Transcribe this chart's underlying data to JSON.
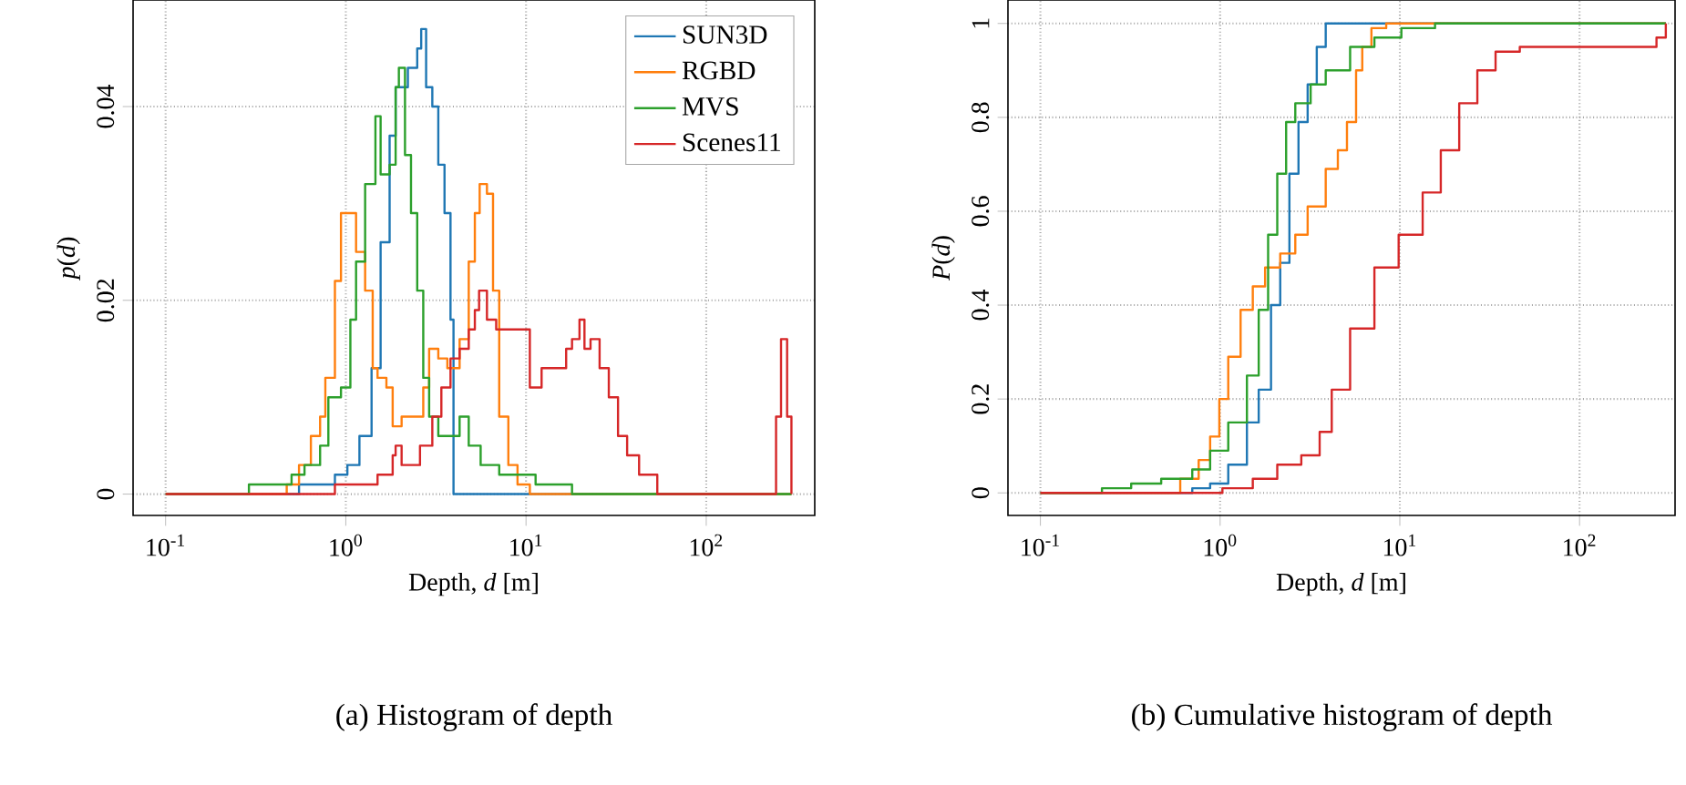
{
  "chart_data": [
    {
      "type": "step",
      "title": "(a) Histogram of depth",
      "xlabel": "Depth, *d* [m]",
      "ylabel": "*p*(*d*)",
      "log": "x",
      "grid": true,
      "legend": "top right",
      "xlim": [
        0.066,
        400
      ],
      "ylim": [
        -0.0022,
        0.051
      ],
      "xticks": [
        {
          "value": 0.1,
          "label": "10$^{-1}$"
        },
        {
          "value": 1,
          "label": "10$^{0}$"
        },
        {
          "value": 10,
          "label": "10$^{1}$"
        },
        {
          "value": 100,
          "label": "10$^{2}$"
        }
      ],
      "yticks": [
        0,
        0.02,
        0.04
      ],
      "series": [
        {
          "name": "SUN3D",
          "color": "#1f77b4",
          "x": [
            0.1,
            0.5,
            0.55,
            0.69,
            0.87,
            1.02,
            1.19,
            1.39,
            1.56,
            1.75,
            1.89,
            2.21,
            2.49,
            2.62,
            2.79,
            3.02,
            3.26,
            3.53,
            3.81,
            3.96,
            297
          ],
          "values": [
            0,
            0,
            0.001,
            0.001,
            0.002,
            0.003,
            0.006,
            0.013,
            0.026,
            0.037,
            0.042,
            0.044,
            0.046,
            0.048,
            0.042,
            0.04,
            0.034,
            0.029,
            0.018,
            0,
            0
          ]
        },
        {
          "name": "RGBD",
          "color": "#ff7f0e",
          "x": [
            0.1,
            0.47,
            0.55,
            0.64,
            0.72,
            0.77,
            0.87,
            0.94,
            1.06,
            1.14,
            1.28,
            1.41,
            1.5,
            1.68,
            1.82,
            2.04,
            2.39,
            2.69,
            2.9,
            3.26,
            3.66,
            4.28,
            4.81,
            5.2,
            5.53,
            6.07,
            6.56,
            7.1,
            7.98,
            8.97,
            10.5,
            297
          ],
          "values": [
            0,
            0.001,
            0.003,
            0.006,
            0.008,
            0.012,
            0.022,
            0.029,
            0.029,
            0.025,
            0.021,
            0.013,
            0.012,
            0.011,
            0.007,
            0.008,
            0.008,
            0.011,
            0.015,
            0.014,
            0.013,
            0.016,
            0.024,
            0.029,
            0.032,
            0.031,
            0.021,
            0.008,
            0.003,
            0.001,
            0,
            0
          ]
        },
        {
          "name": "MVS",
          "color": "#2ca02c",
          "x": [
            0.1,
            0.2,
            0.29,
            0.4,
            0.5,
            0.59,
            0.72,
            0.8,
            0.94,
            1.06,
            1.14,
            1.28,
            1.46,
            1.56,
            1.75,
            1.89,
            1.97,
            2.13,
            2.3,
            2.49,
            2.69,
            2.9,
            3.26,
            3.66,
            4.28,
            4.81,
            5.6,
            7.1,
            8.97,
            11.3,
            14.9,
            18.0,
            24.6,
            297
          ],
          "values": [
            0,
            0,
            0.001,
            0.001,
            0.002,
            0.003,
            0.005,
            0.01,
            0.011,
            0.018,
            0.024,
            0.032,
            0.039,
            0.033,
            0.034,
            0.042,
            0.044,
            0.035,
            0.029,
            0.021,
            0.012,
            0.008,
            0.006,
            0.006,
            0.008,
            0.005,
            0.003,
            0.002,
            0.002,
            0.001,
            0.001,
            0,
            0,
            0
          ]
        },
        {
          "name": "Scenes11",
          "color": "#d62728",
          "x": [
            0.1,
            0.87,
            1.06,
            1.28,
            1.5,
            1.82,
            1.89,
            2.04,
            2.58,
            3.02,
            3.39,
            3.81,
            4.28,
            4.81,
            5.2,
            5.49,
            6.07,
            6.83,
            7.66,
            9.69,
            10.5,
            12.2,
            14.9,
            16.7,
            18.0,
            19.8,
            21.1,
            22.8,
            25.6,
            28.8,
            32.4,
            36.4,
            42.4,
            53.5,
            217,
            244,
            260,
            281,
            297
          ],
          "values": [
            0,
            0.001,
            0.001,
            0.001,
            0.002,
            0.004,
            0.005,
            0.003,
            0.005,
            0.008,
            0.011,
            0.014,
            0.015,
            0.017,
            0.019,
            0.021,
            0.018,
            0.017,
            0.017,
            0.017,
            0.011,
            0.013,
            0.013,
            0.015,
            0.016,
            0.018,
            0.015,
            0.016,
            0.013,
            0.01,
            0.006,
            0.004,
            0.002,
            0,
            0,
            0.008,
            0.016,
            0.008,
            0
          ]
        }
      ]
    },
    {
      "type": "step",
      "title": "(b) Cumulative histogram of depth",
      "xlabel": "Depth, *d* [m]",
      "ylabel": "*P*(*d*)",
      "log": "x",
      "grid": true,
      "xlim": [
        0.066,
        340
      ],
      "ylim": [
        -0.048,
        1.05
      ],
      "xticks": [
        {
          "value": 0.1,
          "label": "10$^{-1}$"
        },
        {
          "value": 1,
          "label": "10$^{0}$"
        },
        {
          "value": 10,
          "label": "10$^{1}$"
        },
        {
          "value": 100,
          "label": "10$^{2}$"
        }
      ],
      "yticks": [
        0,
        0.2,
        0.4,
        0.6,
        0.8,
        1
      ],
      "series": [
        {
          "color": "#1f77b4",
          "x": [
            0.1,
            0.47,
            0.7,
            0.88,
            1.11,
            1.41,
            1.64,
            1.92,
            2.16,
            2.43,
            2.73,
            3.07,
            3.45,
            3.87,
            302
          ],
          "values": [
            0,
            0,
            0.01,
            0.02,
            0.06,
            0.15,
            0.22,
            0.4,
            0.49,
            0.68,
            0.79,
            0.87,
            0.95,
            1,
            1
          ]
        },
        {
          "color": "#ff7f0e",
          "x": [
            0.1,
            0.47,
            0.6,
            0.76,
            0.88,
            0.99,
            1.11,
            1.3,
            1.52,
            1.78,
            2.16,
            2.62,
            3.07,
            3.87,
            4.52,
            5.08,
            5.71,
            6.18,
            6.95,
            8.4,
            302
          ],
          "values": [
            0,
            0,
            0.03,
            0.07,
            0.12,
            0.2,
            0.29,
            0.39,
            0.44,
            0.48,
            0.51,
            0.55,
            0.61,
            0.69,
            0.73,
            0.79,
            0.9,
            0.95,
            0.99,
            1,
            1
          ]
        },
        {
          "color": "#2ca02c",
          "x": [
            0.1,
            0.22,
            0.32,
            0.47,
            0.7,
            0.88,
            1.11,
            1.41,
            1.64,
            1.85,
            2.08,
            2.33,
            2.62,
            3.19,
            3.87,
            5.29,
            7.22,
            10.2,
            15.7,
            302
          ],
          "values": [
            0,
            0.01,
            0.02,
            0.03,
            0.05,
            0.09,
            0.15,
            0.25,
            0.39,
            0.55,
            0.68,
            0.79,
            0.83,
            0.87,
            0.9,
            0.95,
            0.97,
            0.99,
            1,
            1
          ]
        },
        {
          "color": "#d62728",
          "x": [
            0.1,
            0.7,
            1.03,
            1.52,
            2.08,
            2.83,
            3.58,
            4.18,
            5.29,
            7.22,
            9.85,
            13.4,
            16.9,
            21.4,
            27.0,
            34.1,
            46.5,
            239,
            268,
            302
          ],
          "values": [
            0,
            0,
            0.01,
            0.03,
            0.06,
            0.08,
            0.13,
            0.22,
            0.35,
            0.48,
            0.55,
            0.64,
            0.73,
            0.83,
            0.9,
            0.94,
            0.95,
            0.95,
            0.97,
            1
          ]
        }
      ]
    }
  ]
}
